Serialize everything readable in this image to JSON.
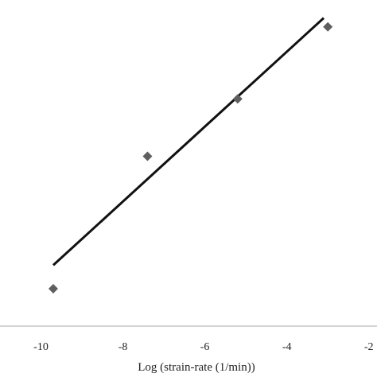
{
  "chart_data": {
    "type": "scatter",
    "title": "",
    "xlabel": "Log (strain-rate (1/min))",
    "ylabel": "",
    "xlim": [
      -11,
      -1.8
    ],
    "ylim": [
      0,
      1
    ],
    "xticks": [
      -10,
      -8,
      -6,
      -4,
      -2
    ],
    "xtick_labels": [
      "-10",
      "-8",
      "-6",
      "-4",
      "-2"
    ],
    "grid": false,
    "legend": "none",
    "points": [
      {
        "x": -9.7,
        "y": 0.1
      },
      {
        "x": -7.4,
        "y": 0.55
      },
      {
        "x": -5.2,
        "y": 0.745
      },
      {
        "x": -3.0,
        "y": 0.99
      }
    ],
    "trendline": {
      "x": [
        -9.7,
        -3.1
      ],
      "y": [
        0.18,
        1.02
      ]
    },
    "colors": {
      "marker": "#5f5f5f",
      "trendline": "#111111",
      "axis": "#aaaaaa",
      "text": "#222222"
    }
  }
}
